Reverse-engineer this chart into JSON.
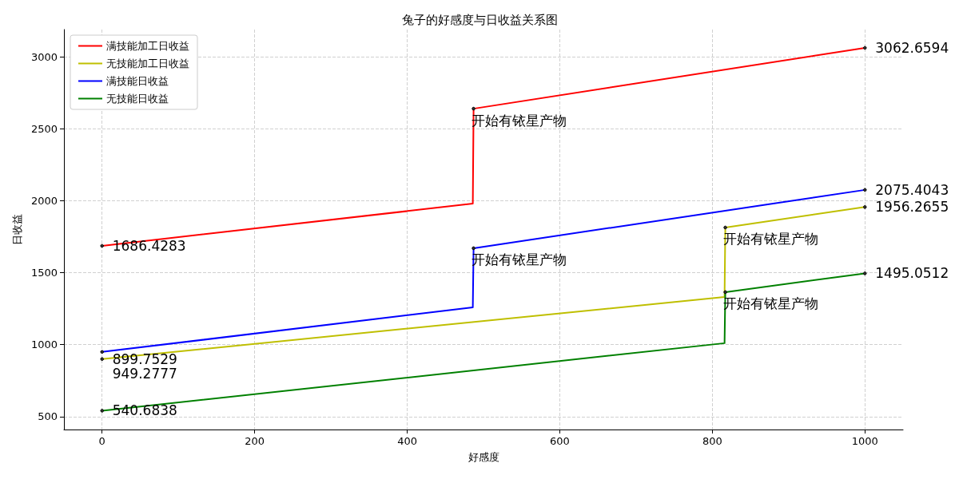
{
  "chart_data": {
    "type": "line",
    "title": "兔子的好感度与日收益关系图",
    "xlabel": "好感度",
    "ylabel": "日收益",
    "xlim": [
      -50,
      1050
    ],
    "xticks": [
      0,
      200,
      400,
      600,
      800,
      1000
    ],
    "ylim": [
      410,
      3190
    ],
    "yticks": [
      500,
      1000,
      1500,
      2000,
      2500,
      3000
    ],
    "grid": true,
    "legend": "top left",
    "line_style": "solid",
    "marker": "none",
    "series": [
      {
        "name": "满技能加工日收益",
        "color": "#ff0000",
        "x": [
          0,
          486,
          487,
          1000
        ],
        "values": [
          1686.4283,
          1980,
          2640,
          3062.6594
        ]
      },
      {
        "name": "无技能加工日收益",
        "color": "#bfbf00",
        "x": [
          0,
          816,
          817,
          1000
        ],
        "values": [
          899.7529,
          1331,
          1814,
          1956.2655
        ]
      },
      {
        "name": "满技能日收益",
        "color": "#0000ff",
        "x": [
          0,
          486,
          487,
          1000
        ],
        "values": [
          949.2777,
          1259,
          1670,
          2075.4043
        ]
      },
      {
        "name": "无技能日收益",
        "color": "#008000",
        "x": [
          0,
          816,
          817,
          1000
        ],
        "values": [
          540.6838,
          1010,
          1365,
          1495.0512
        ]
      }
    ],
    "annotations": [
      {
        "text": "1686.4283",
        "x": 0,
        "y": 1686.4283
      },
      {
        "text": "3062.6594",
        "x": 1000,
        "y": 3062.6594
      },
      {
        "text": "899.7529",
        "x": 0,
        "y": 899.7529
      },
      {
        "text": "1956.2655",
        "x": 1000,
        "y": 1956.2655
      },
      {
        "text": "949.2777",
        "x": 0,
        "y": 949.2777
      },
      {
        "text": "2075.4043",
        "x": 1000,
        "y": 2075.4043
      },
      {
        "text": "540.6838",
        "x": 0,
        "y": 540.6838
      },
      {
        "text": "1495.0512",
        "x": 1000,
        "y": 1495.0512
      },
      {
        "text": "开始有铱星产物",
        "x": 487,
        "y": 2640
      },
      {
        "text": "开始有铱星产物",
        "x": 487,
        "y": 1670
      },
      {
        "text": "开始有铱星产物",
        "x": 817,
        "y": 1814
      },
      {
        "text": "开始有铱星产物",
        "x": 817,
        "y": 1365
      }
    ]
  }
}
